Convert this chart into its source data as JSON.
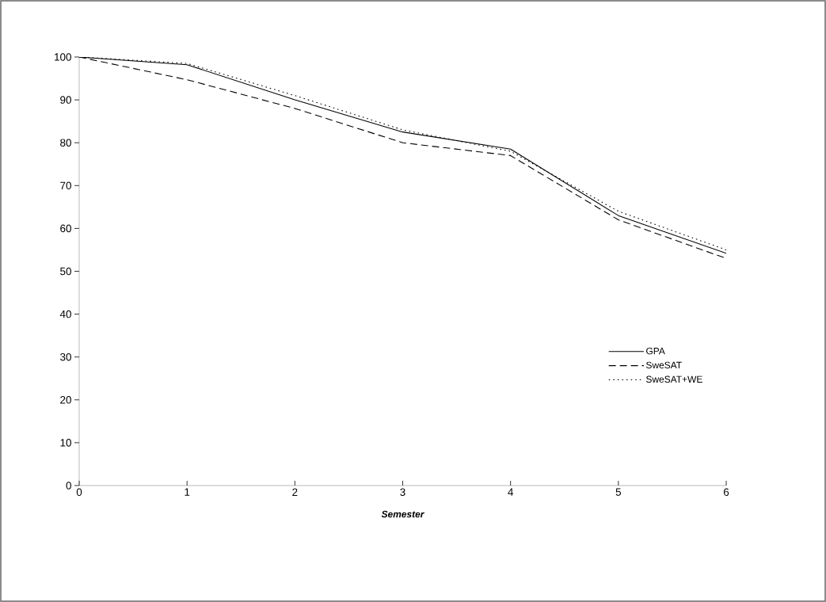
{
  "chart_data": {
    "type": "line",
    "xlabel": "Semester",
    "x": [
      0,
      1,
      2,
      3,
      4,
      5,
      6
    ],
    "xlim": [
      0,
      6
    ],
    "xticks": [
      0,
      1,
      2,
      3,
      4,
      5,
      6
    ],
    "ylim": [
      0,
      100
    ],
    "yticks": [
      0,
      10,
      20,
      30,
      40,
      50,
      60,
      70,
      80,
      90,
      100
    ],
    "series": [
      {
        "name": "GPA",
        "color": "#000000",
        "line_style": "solid",
        "values": [
          100,
          98.2,
          90,
          82.5,
          78.5,
          63,
          54.2
        ]
      },
      {
        "name": "SweSAT",
        "color": "#000000",
        "line_style": "dashed",
        "values": [
          100,
          94.7,
          88,
          80,
          77,
          62,
          53
        ]
      },
      {
        "name": "SweSAT+WE",
        "color": "#000000",
        "line_style": "dotted",
        "values": [
          100,
          98.5,
          91,
          83,
          78,
          64,
          55
        ]
      }
    ],
    "grid": false,
    "legend": "bottom right",
    "marker": "none"
  }
}
